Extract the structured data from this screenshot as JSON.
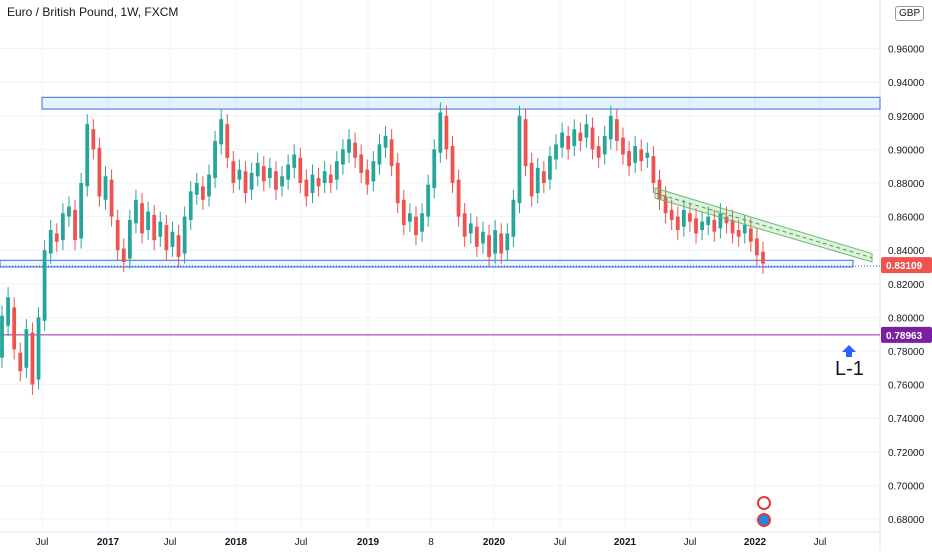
{
  "chart_data": {
    "type": "candlestick",
    "title": "Euro / British Pound, 1W, FXCM",
    "currency": "GBP",
    "x_tick_labels": [
      "Jul",
      "2017",
      "Jul",
      "2018",
      "Jul",
      "2019",
      "8",
      "2020",
      "Jul",
      "2021",
      "Jul",
      "2022",
      "Jul"
    ],
    "y_tick_labels": [
      "0.96000",
      "0.94000",
      "0.92000",
      "0.90000",
      "0.88000",
      "0.86000",
      "0.84000",
      "0.82000",
      "0.80000",
      "0.78000",
      "0.76000",
      "0.74000",
      "0.72000",
      "0.70000",
      "0.68000"
    ],
    "ylim": [
      0.675,
      0.965
    ],
    "last_price": "0.83109",
    "target_price": "0.78963",
    "annotation": "L-1",
    "bullish_color": "#26a69a",
    "bearish_color": "#ef5350",
    "series": [
      {
        "values": [
          [
            0.776,
            0.801
          ],
          [
            0.795,
            0.812
          ],
          [
            0.806,
            0.781
          ],
          [
            0.779,
            0.768
          ],
          [
            0.77,
            0.793
          ],
          [
            0.791,
            0.76
          ],
          [
            0.763,
            0.8
          ],
          [
            0.798,
            0.84
          ],
          [
            0.838,
            0.852
          ],
          [
            0.85,
            0.845
          ],
          [
            0.846,
            0.862
          ],
          [
            0.86,
            0.866
          ],
          [
            0.864,
            0.846
          ],
          [
            0.847,
            0.88
          ],
          [
            0.878,
            0.915
          ],
          [
            0.912,
            0.9
          ],
          [
            0.901,
            0.872
          ],
          [
            0.87,
            0.884
          ],
          [
            0.882,
            0.86
          ],
          [
            0.858,
            0.84
          ],
          [
            0.841,
            0.833
          ],
          [
            0.835,
            0.858
          ],
          [
            0.856,
            0.87
          ],
          [
            0.868,
            0.85
          ],
          [
            0.852,
            0.863
          ],
          [
            0.861,
            0.846
          ],
          [
            0.848,
            0.857
          ],
          [
            0.855,
            0.84
          ],
          [
            0.842,
            0.851
          ],
          [
            0.849,
            0.836
          ],
          [
            0.838,
            0.86
          ],
          [
            0.858,
            0.875
          ],
          [
            0.873,
            0.88
          ],
          [
            0.878,
            0.87
          ],
          [
            0.872,
            0.885
          ],
          [
            0.883,
            0.905
          ],
          [
            0.903,
            0.918
          ],
          [
            0.915,
            0.895
          ],
          [
            0.893,
            0.88
          ],
          [
            0.882,
            0.888
          ],
          [
            0.887,
            0.874
          ],
          [
            0.876,
            0.886
          ],
          [
            0.884,
            0.892
          ],
          [
            0.89,
            0.881
          ],
          [
            0.883,
            0.889
          ],
          [
            0.887,
            0.876
          ],
          [
            0.878,
            0.884
          ],
          [
            0.882,
            0.891
          ],
          [
            0.889,
            0.897
          ],
          [
            0.895,
            0.88
          ],
          [
            0.882,
            0.872
          ],
          [
            0.874,
            0.885
          ],
          [
            0.883,
            0.878
          ],
          [
            0.88,
            0.887
          ],
          [
            0.885,
            0.88
          ],
          [
            0.882,
            0.893
          ],
          [
            0.891,
            0.9
          ],
          [
            0.898,
            0.906
          ],
          [
            0.904,
            0.895
          ],
          [
            0.897,
            0.886
          ],
          [
            0.888,
            0.879
          ],
          [
            0.881,
            0.893
          ],
          [
            0.891,
            0.903
          ],
          [
            0.901,
            0.908
          ],
          [
            0.906,
            0.89
          ],
          [
            0.892,
            0.868
          ],
          [
            0.87,
            0.855
          ],
          [
            0.857,
            0.862
          ],
          [
            0.86,
            0.849
          ],
          [
            0.851,
            0.862
          ],
          [
            0.86,
            0.879
          ],
          [
            0.877,
            0.9
          ],
          [
            0.898,
            0.922
          ],
          [
            0.92,
            0.9
          ],
          [
            0.902,
            0.88
          ],
          [
            0.882,
            0.86
          ],
          [
            0.862,
            0.848
          ],
          [
            0.85,
            0.856
          ],
          [
            0.854,
            0.842
          ],
          [
            0.844,
            0.851
          ],
          [
            0.849,
            0.836
          ],
          [
            0.838,
            0.852
          ],
          [
            0.85,
            0.838
          ],
          [
            0.84,
            0.85
          ],
          [
            0.848,
            0.87
          ],
          [
            0.868,
            0.92
          ],
          [
            0.918,
            0.89
          ],
          [
            0.892,
            0.872
          ],
          [
            0.874,
            0.889
          ],
          [
            0.887,
            0.88
          ],
          [
            0.882,
            0.896
          ],
          [
            0.894,
            0.903
          ],
          [
            0.901,
            0.91
          ],
          [
            0.908,
            0.9
          ],
          [
            0.902,
            0.912
          ],
          [
            0.91,
            0.905
          ],
          [
            0.907,
            0.915
          ],
          [
            0.913,
            0.9
          ],
          [
            0.902,
            0.895
          ],
          [
            0.897,
            0.908
          ],
          [
            0.906,
            0.92
          ],
          [
            0.918,
            0.905
          ],
          [
            0.907,
            0.897
          ],
          [
            0.899,
            0.89
          ],
          [
            0.892,
            0.902
          ],
          [
            0.9,
            0.893
          ],
          [
            0.895,
            0.898
          ],
          [
            0.896,
            0.88
          ],
          [
            0.882,
            0.87
          ],
          [
            0.872,
            0.862
          ],
          [
            0.864,
            0.858
          ],
          [
            0.86,
            0.852
          ],
          [
            0.854,
            0.864
          ],
          [
            0.862,
            0.857
          ],
          [
            0.859,
            0.85
          ],
          [
            0.852,
            0.857
          ],
          [
            0.855,
            0.86
          ],
          [
            0.858,
            0.851
          ],
          [
            0.853,
            0.862
          ],
          [
            0.86,
            0.856
          ],
          [
            0.858,
            0.85
          ],
          [
            0.852,
            0.848
          ],
          [
            0.85,
            0.855
          ],
          [
            0.853,
            0.845
          ],
          [
            0.847,
            0.837
          ],
          [
            0.839,
            0.832
          ]
        ]
      }
    ]
  }
}
